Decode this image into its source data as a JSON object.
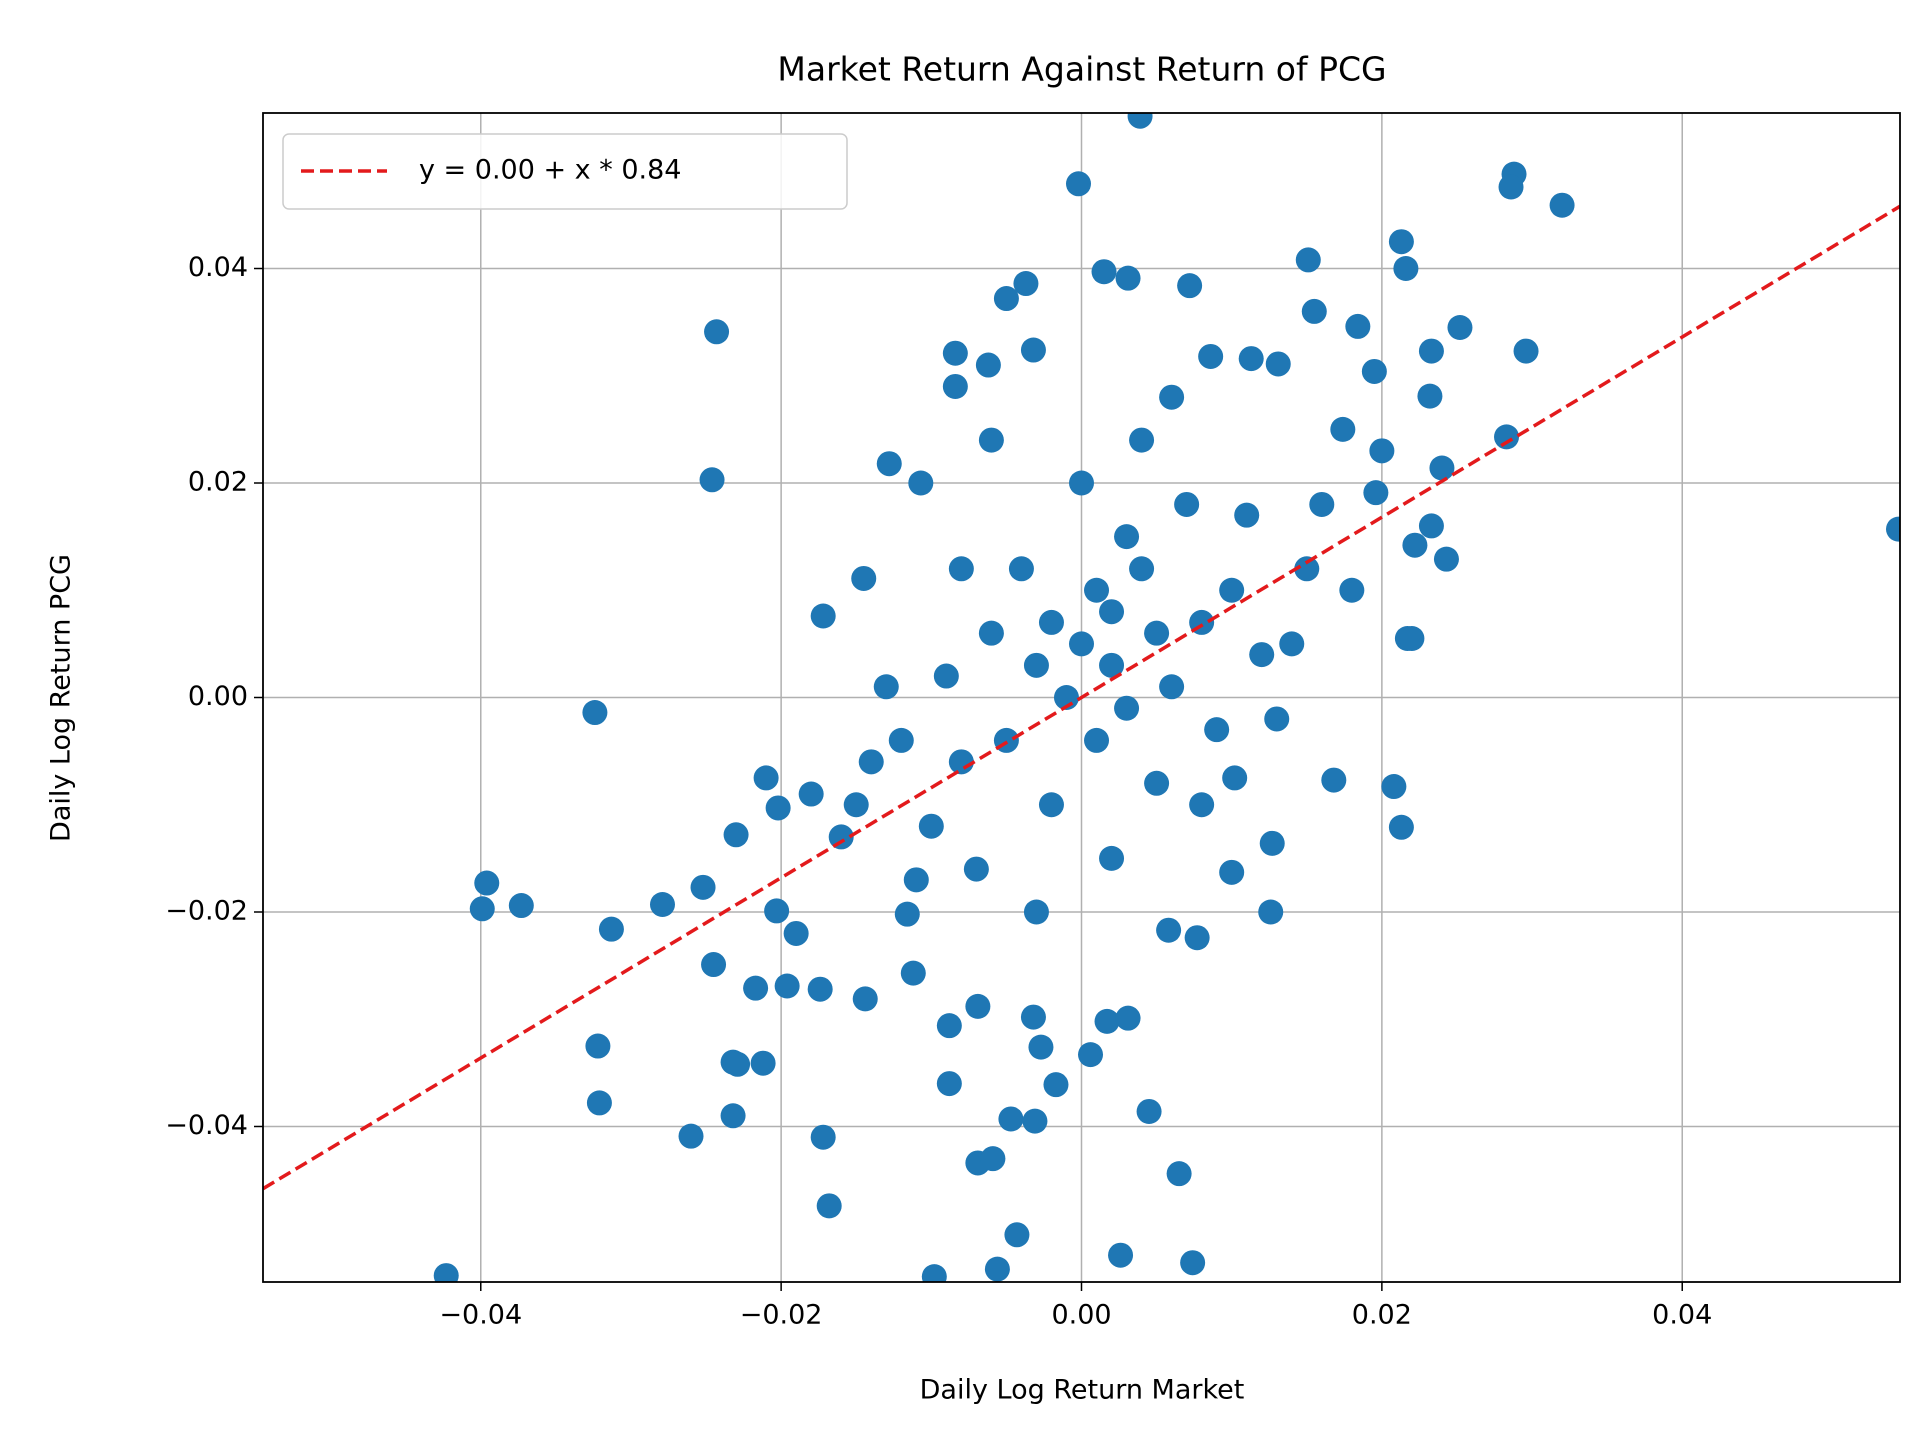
{
  "chart_data": {
    "type": "scatter",
    "title": "Market Return Against Return of PCG",
    "x_label": "Daily Log Return Market",
    "y_label": "Daily Log Return PCG",
    "xlim": [
      -0.0545,
      0.0545
    ],
    "ylim": [
      -0.0545,
      0.0545
    ],
    "xticks": [
      {
        "value": -0.04,
        "label": "−0.04"
      },
      {
        "value": -0.02,
        "label": "−0.02"
      },
      {
        "value": 0,
        "label": "0.00"
      },
      0.02,
      0.04
    ],
    "yticks": [
      {
        "value": -0.04,
        "label": "−0.04"
      },
      {
        "value": -0.02,
        "label": "−0.02"
      },
      {
        "value": 0,
        "label": "0.00"
      },
      0.02,
      0.04
    ],
    "grid": true,
    "legend": "upper left",
    "series": [
      {
        "type": "scatter",
        "color": "#1f77b4",
        "x": [
          0.0039,
          -0.0002,
          0.0288,
          0.0286,
          0.032,
          0.0213,
          0.0216,
          0.0151,
          -0.0243,
          -0.0246,
          0.0544,
          -0.0324,
          -0.0396,
          -0.0399,
          -0.0373,
          -0.0313,
          -0.0279,
          -0.0252,
          -0.0245,
          -0.0322,
          -0.0321,
          -0.026,
          -0.0232,
          -0.0229,
          -0.0212,
          -0.0232,
          -0.0217,
          -0.0196,
          -0.0174,
          -0.0172,
          -0.0168,
          -0.0423,
          -0.0098,
          0.0026,
          0.0074,
          -0.0043,
          -0.0056,
          -0.0069,
          -0.0059,
          -0.0088,
          -0.0088,
          -0.0069,
          -0.0047,
          -0.0031,
          -0.0017,
          0.0006,
          -0.0027,
          -0.0032,
          0.0017,
          0.0031,
          0.0045,
          0.0065,
          0.0077,
          0.0058,
          0.0126,
          0.0168,
          0.0208,
          0.0213,
          0.0217,
          0.022,
          0.0243,
          0.0222,
          0.0233,
          0.0283,
          0.0296,
          0.0252,
          0.0233,
          0.0184,
          0.0195,
          0.0155,
          0.0086,
          0.0072,
          0.0015,
          0.0031,
          -0.0037,
          -0.005,
          -0.0032,
          -0.0084,
          -0.0084,
          -0.0062,
          -0.0128,
          -0.0107,
          -0.0145,
          -0.0172,
          -0.021,
          -0.0202,
          -0.023,
          -0.0203,
          -0.0144,
          -0.0112,
          -0.0116,
          0.024,
          0.0232,
          0.0174,
          0.0131,
          0.0113,
          0.0196,
          0.0102,
          0.01,
          0.0127,
          0.0,
          0.002,
          -0.003,
          0.004,
          -0.005,
          0.006,
          -0.008,
          0.008,
          0.001,
          -0.002,
          0.003,
          -0.006,
          0.01,
          -0.01,
          0.012,
          -0.012,
          0.005,
          -0.004,
          0.015,
          -0.015,
          0.0,
          0.002,
          -0.007,
          0.007,
          -0.001,
          0.009,
          -0.009,
          0.011,
          -0.011,
          0.014,
          -0.014,
          0.004,
          -0.003,
          0.016,
          -0.016,
          0.006,
          -0.006,
          0.001,
          -0.002,
          0.003,
          0.013,
          -0.013,
          0.018,
          -0.018,
          0.008,
          -0.008,
          0.02,
          -0.019,
          0.002,
          0.005
        ],
        "values": [
          0.0542,
          0.0479,
          0.0488,
          0.0476,
          0.0459,
          0.0425,
          0.04,
          0.0408,
          0.0341,
          0.0203,
          0.0157,
          -0.0014,
          -0.0173,
          -0.0197,
          -0.0194,
          -0.0216,
          -0.0193,
          -0.0177,
          -0.0249,
          -0.0325,
          -0.0378,
          -0.0409,
          -0.034,
          -0.0342,
          -0.0341,
          -0.039,
          -0.0271,
          -0.0269,
          -0.0272,
          -0.041,
          -0.0474,
          -0.0539,
          -0.054,
          -0.052,
          -0.0527,
          -0.0501,
          -0.0533,
          -0.0434,
          -0.043,
          -0.036,
          -0.0306,
          -0.0288,
          -0.0393,
          -0.0395,
          -0.0361,
          -0.0333,
          -0.0326,
          -0.0298,
          -0.0302,
          -0.0299,
          -0.0386,
          -0.0444,
          -0.0224,
          -0.0217,
          -0.02,
          -0.0077,
          -0.0083,
          -0.0121,
          0.0055,
          0.0055,
          0.0129,
          0.0142,
          0.016,
          0.0243,
          0.0323,
          0.0345,
          0.0323,
          0.0346,
          0.0304,
          0.036,
          0.0318,
          0.0384,
          0.0397,
          0.0391,
          0.0386,
          0.0372,
          0.0324,
          0.0321,
          0.029,
          0.031,
          0.0218,
          0.02,
          0.0111,
          0.0076,
          -0.0075,
          -0.0103,
          -0.0128,
          -0.0199,
          -0.0281,
          -0.0257,
          -0.0202,
          0.0214,
          0.0281,
          0.025,
          0.0311,
          0.0316,
          0.0191,
          -0.0075,
          -0.0163,
          -0.0136,
          0.005,
          0.008,
          0.003,
          0.012,
          -0.004,
          0.001,
          -0.006,
          0.007,
          -0.004,
          -0.01,
          0.015,
          0.006,
          0.01,
          -0.012,
          0.004,
          -0.004,
          -0.008,
          0.012,
          0.012,
          -0.01,
          0.02,
          -0.015,
          -0.016,
          0.018,
          0.0,
          -0.003,
          0.002,
          0.017,
          -0.017,
          0.005,
          -0.006,
          0.024,
          -0.02,
          0.018,
          -0.013,
          0.028,
          0.024,
          0.01,
          0.007,
          -0.001,
          -0.002,
          0.001,
          0.01,
          -0.009,
          -0.01,
          0.012,
          0.023,
          -0.022,
          0.003,
          0.006
        ]
      },
      {
        "type": "line",
        "name": "y = 0.00 + x * 0.84",
        "color": "#e31a1c",
        "dashed": true,
        "x": [
          -0.0545,
          0.0545
        ],
        "values": [
          -0.0458,
          0.0458
        ]
      }
    ]
  }
}
